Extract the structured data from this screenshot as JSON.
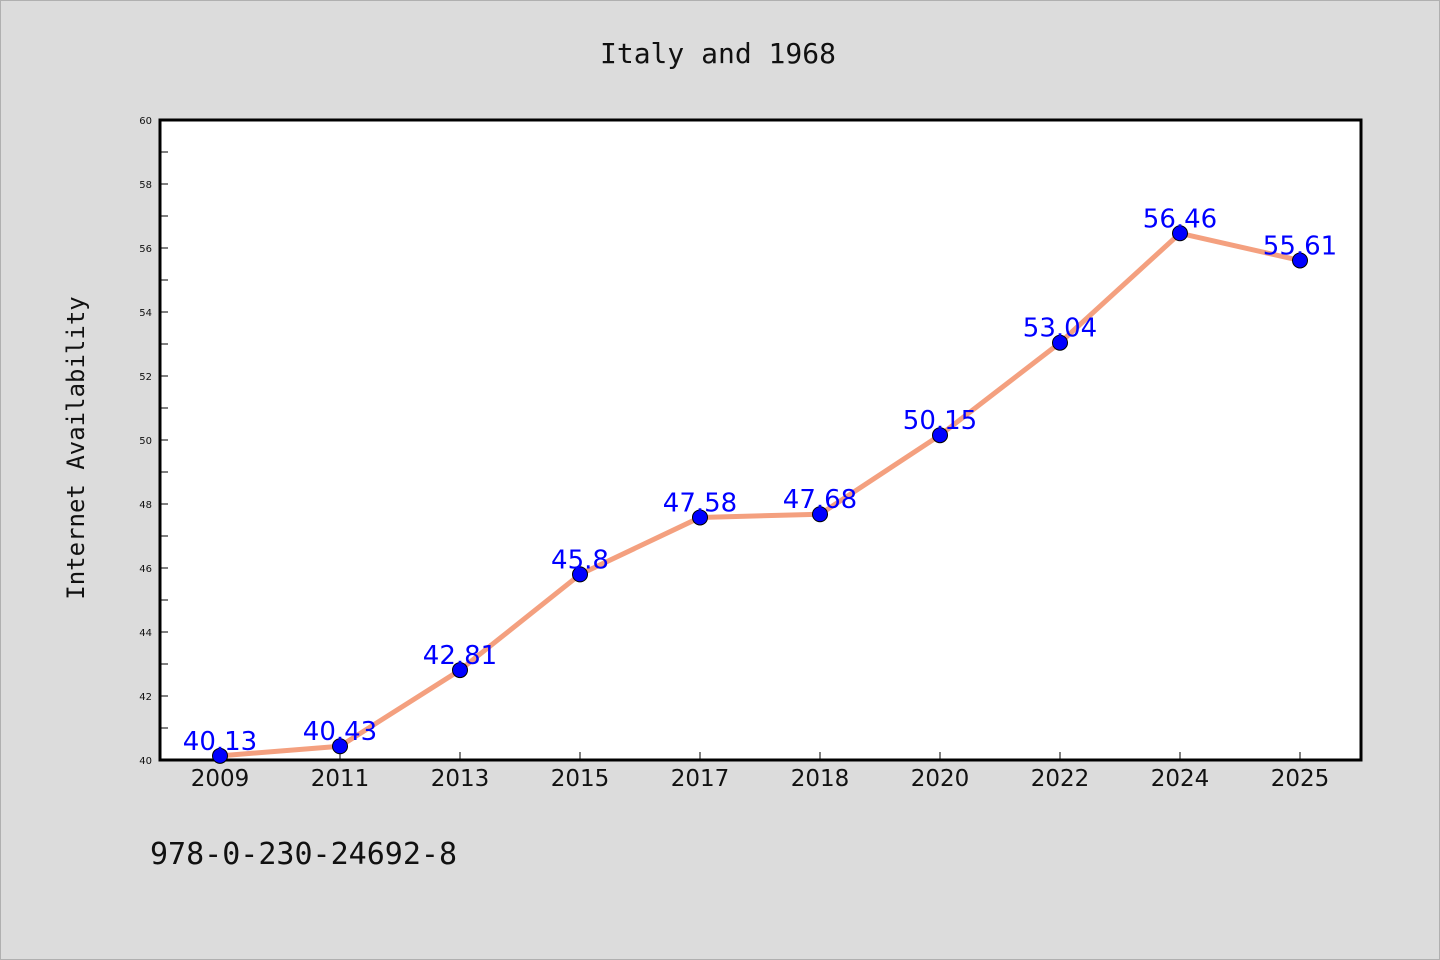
{
  "chart_data": {
    "type": "line",
    "title": "Italy and 1968",
    "xlabel": "",
    "ylabel": "Internet Availability",
    "categories": [
      "2009",
      "2011",
      "2013",
      "2015",
      "2017",
      "2018",
      "2020",
      "2022",
      "2024",
      "2025"
    ],
    "series": [
      {
        "values": [
          40.13,
          40.43,
          42.81,
          45.8,
          47.58,
          47.68,
          50.15,
          53.04,
          56.46,
          55.61
        ],
        "labels": [
          "40.13",
          "40.43",
          "42.81",
          "45.8",
          "47.58",
          "47.68",
          "50.15",
          "53.04",
          "56.46",
          "55.61"
        ],
        "line_color": "#f4a07f",
        "marker_color": "#0000ff"
      }
    ],
    "ylim": [
      40,
      60
    ],
    "yticks": [
      "40",
      "42",
      "44",
      "46",
      "48",
      "50",
      "52",
      "54",
      "56",
      "58",
      "60"
    ],
    "grid": false
  },
  "annotation": {
    "text": "978-0-230-24692-8"
  },
  "colors": {
    "background": "#dcdcdc",
    "plot_area": "#ffffff",
    "line": "#f4a07f",
    "marker": "#0000ff",
    "data_label": "#0000ff"
  }
}
